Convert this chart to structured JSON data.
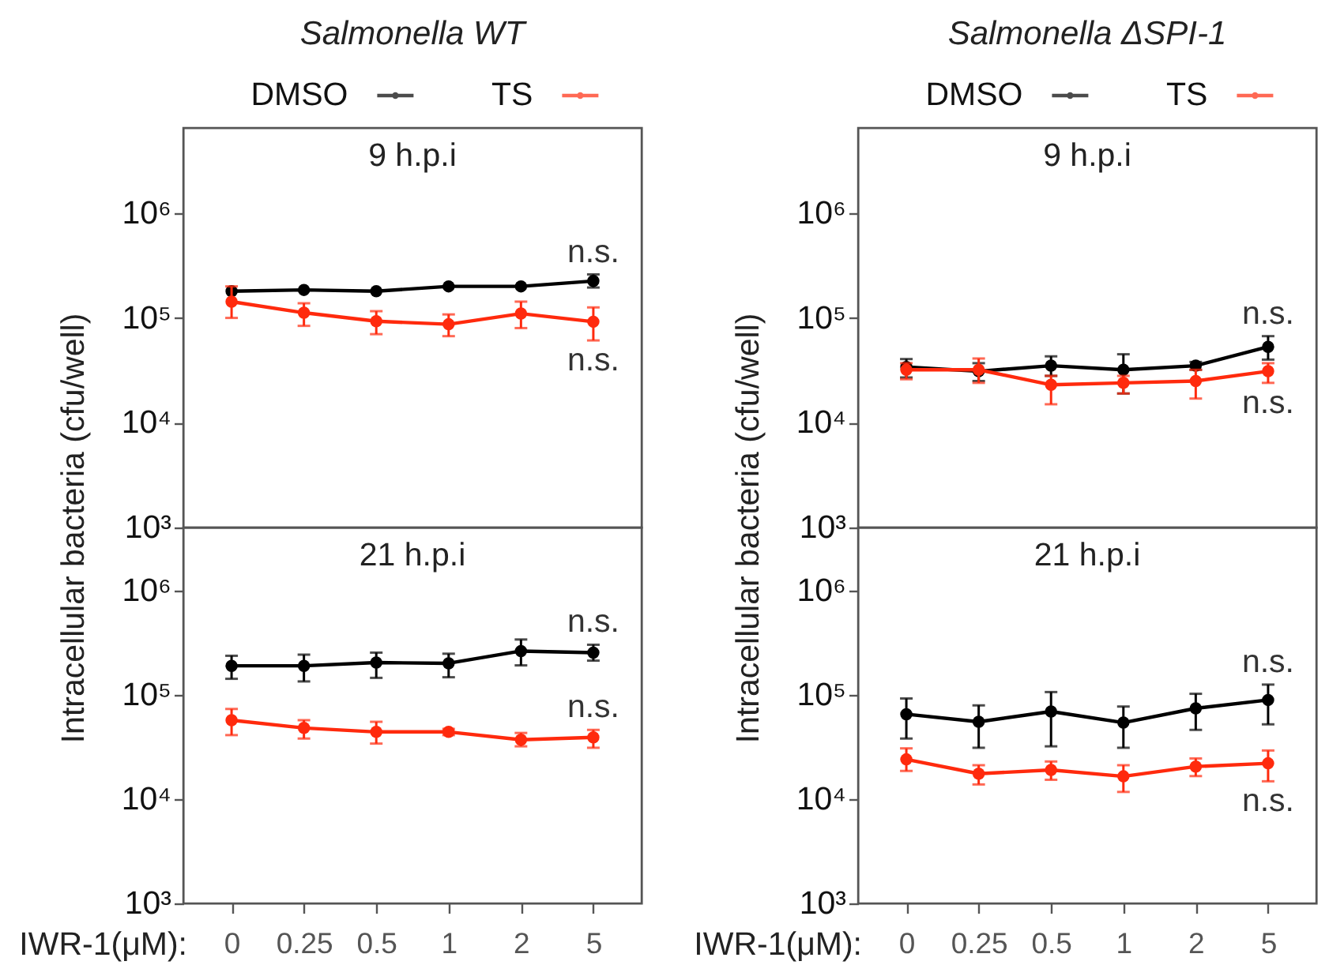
{
  "chart_data": [
    {
      "type": "line",
      "title": "Salmonella WT",
      "subtitle": "9 h.p.i",
      "ylabel": "Intracellular bacteria (cfu/well)",
      "categories": [
        "0",
        "0.25",
        "0.5",
        "1",
        "2",
        "5"
      ],
      "series": [
        {
          "name": "DMSO",
          "color": "#000000",
          "values": [
            180000,
            185000,
            180000,
            200000,
            200000,
            225000
          ],
          "errors": [
            null,
            null,
            null,
            null,
            null,
            [
              195000,
              260000
            ]
          ]
        },
        {
          "name": "TS",
          "color": "#ff2a0d",
          "values": [
            143000,
            112000,
            93000,
            87000,
            110000,
            92000
          ],
          "errors": [
            [
              100000,
              200000
            ],
            [
              84000,
              138000
            ],
            [
              70000,
              116000
            ],
            [
              67000,
              108000
            ],
            [
              80000,
              143000
            ],
            [
              61000,
              126000
            ]
          ]
        }
      ],
      "ylim": [
        1000,
        6500000
      ],
      "yticks": [
        {
          "value": 1000,
          "label": "10³"
        },
        {
          "value": 10000,
          "label": "10⁴"
        },
        {
          "value": 100000,
          "label": "10⁵"
        },
        {
          "value": 1000000,
          "label": "10⁶"
        }
      ],
      "log": true,
      "legend": "top",
      "marker": "circle",
      "tick_labels": "y",
      "annotations": [
        {
          "text": "n.s.",
          "x": "5",
          "y": 260000
        },
        {
          "text": "n.s.",
          "x": "5",
          "y": 61000
        }
      ]
    },
    {
      "type": "line",
      "title": "Salmonella ΔSPI-1",
      "subtitle": "9 h.p.i",
      "ylabel": "Intracellular bacteria (cfu/well)",
      "categories": [
        "0",
        "0.25",
        "0.5",
        "1",
        "2",
        "5"
      ],
      "series": [
        {
          "name": "DMSO",
          "color": "#000000",
          "values": [
            34000,
            31000,
            35000,
            32000,
            35000,
            53000
          ],
          "errors": [
            [
              27000,
              40500
            ],
            [
              25000,
              37000
            ],
            [
              28000,
              43000
            ],
            [
              19000,
              45000
            ],
            [
              32000,
              38000
            ],
            [
              40000,
              67000
            ]
          ]
        },
        {
          "name": "TS",
          "color": "#ff2a0d",
          "values": [
            32000,
            32000,
            23000,
            24000,
            25000,
            31000
          ],
          "errors": [
            [
              26000,
              37000
            ],
            [
              24000,
              41000
            ],
            [
              15000,
              28000
            ],
            [
              19000,
              28000
            ],
            [
              17000,
              32000
            ],
            [
              24000,
              37000
            ]
          ]
        }
      ],
      "ylim": [
        1000,
        6500000
      ],
      "yticks": [
        {
          "value": 1000,
          "label": "10³"
        },
        {
          "value": 10000,
          "label": "10⁴"
        },
        {
          "value": 100000,
          "label": "10⁵"
        },
        {
          "value": 1000000,
          "label": "10⁶"
        }
      ],
      "log": true,
      "legend": "top",
      "marker": "circle",
      "tick_labels": "y",
      "annotations": [
        {
          "text": "n.s.",
          "x": "5",
          "y": 67000
        },
        {
          "text": "n.s.",
          "x": "5",
          "y": 24000
        }
      ]
    },
    {
      "type": "line",
      "subtitle": "21 h.p.i",
      "xlabel": "IWR-1(μM):",
      "categories": [
        "0",
        "0.25",
        "0.5",
        "1",
        "2",
        "5"
      ],
      "series": [
        {
          "color": "#000000",
          "values": [
            189000,
            189000,
            203000,
            200000,
            262000,
            253000
          ],
          "errors": [
            [
              142000,
              236000
            ],
            [
              134000,
              242000
            ],
            [
              145000,
              253000
            ],
            [
              147000,
              247000
            ],
            [
              191000,
              338000
            ],
            [
              212000,
              301000
            ]
          ]
        },
        {
          "color": "#ff2a0d",
          "values": [
            57000,
            48000,
            44000,
            44000,
            37000,
            39000
          ],
          "errors": [
            [
              41000,
              73000
            ],
            [
              38000,
              57000
            ],
            [
              34000,
              55000
            ],
            [
              41000,
              47000
            ],
            [
              32000,
              43000
            ],
            [
              31000,
              46000
            ]
          ]
        }
      ],
      "ylim": [
        1000,
        4000000
      ],
      "yticks": [
        {
          "value": 1000,
          "label": "10³"
        },
        {
          "value": 10000,
          "label": "10⁴"
        },
        {
          "value": 100000,
          "label": "10⁵"
        },
        {
          "value": 1000000,
          "label": "10⁶"
        }
      ],
      "log": true,
      "marker": "circle",
      "annotations": [
        {
          "text": "n.s.",
          "x": "5",
          "y": 301000
        },
        {
          "text": "n.s.",
          "x": "5",
          "y": 46000
        }
      ]
    },
    {
      "type": "line",
      "subtitle": "21 h.p.i",
      "xlabel": "IWR-1(μM):",
      "categories": [
        "0",
        "0.25",
        "0.5",
        "1",
        "2",
        "5"
      ],
      "series": [
        {
          "color": "#000000",
          "values": [
            65000,
            55000,
            69000,
            54000,
            74000,
            89000
          ],
          "errors": [
            [
              38000,
              92000
            ],
            [
              31000,
              79000
            ],
            [
              32000,
              106000
            ],
            [
              31000,
              77000
            ],
            [
              46000,
              102000
            ],
            [
              52000,
              125000
            ]
          ]
        },
        {
          "color": "#ff2a0d",
          "values": [
            24000,
            17500,
            19000,
            16500,
            20500,
            22000
          ],
          "errors": [
            [
              18600,
              30600
            ],
            [
              13800,
              21100
            ],
            [
              15300,
              22900
            ],
            [
              11700,
              21100
            ],
            [
              16600,
              24500
            ],
            [
              14800,
              29200
            ]
          ]
        }
      ],
      "ylim": [
        1000,
        4000000
      ],
      "yticks": [
        {
          "value": 1000,
          "label": "10³"
        },
        {
          "value": 10000,
          "label": "10⁴"
        },
        {
          "value": 100000,
          "label": "10⁵"
        },
        {
          "value": 1000000,
          "label": "10⁶"
        }
      ],
      "log": true,
      "marker": "circle",
      "annotations": [
        {
          "text": "n.s.",
          "x": "5",
          "y": 125000
        },
        {
          "text": "n.s.",
          "x": "5",
          "y": 14800
        }
      ]
    }
  ]
}
